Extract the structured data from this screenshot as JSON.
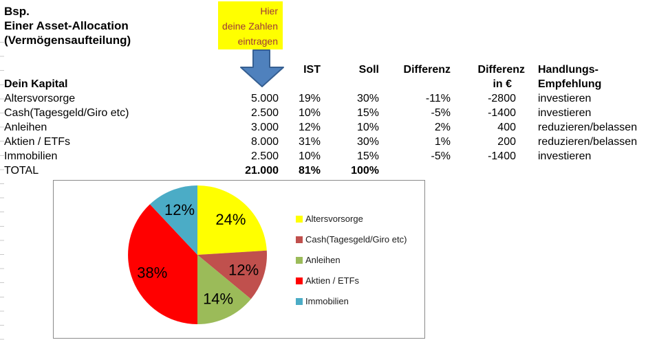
{
  "title_block": {
    "lines": [
      "Bsp.",
      "Einer Asset-Allocation",
      "(Vermögensaufteilung)"
    ]
  },
  "note": {
    "lines": [
      "Hier",
      "deine Zahlen",
      "eintragen"
    ],
    "bg_color": "#FFFF00",
    "text_color": "#9C3838"
  },
  "arrow": {
    "fill": "#4F81BD",
    "stroke": "#365F91"
  },
  "table": {
    "section_label": "Dein Kapital",
    "col_headers": {
      "ist": "IST",
      "soll": "Soll",
      "differenz": "Differenz",
      "differenz_eur_line1": "Differenz",
      "differenz_eur_line2": "in €",
      "action_line1": "Handlungs-",
      "action_line2": "Empfehlung"
    },
    "rows": [
      {
        "label": "Altersvorsorge",
        "kapital": "5.000",
        "ist": "19%",
        "soll": "30%",
        "differenz": "-11%",
        "differenz_eur": "-2800",
        "empfehlung": "investieren"
      },
      {
        "label": "Cash(Tagesgeld/Giro etc)",
        "kapital": "2.500",
        "ist": "10%",
        "soll": "15%",
        "differenz": "-5%",
        "differenz_eur": "-1400",
        "empfehlung": "investieren"
      },
      {
        "label": "Anleihen",
        "kapital": "3.000",
        "ist": "12%",
        "soll": "10%",
        "differenz": "2%",
        "differenz_eur": "400",
        "empfehlung": "reduzieren/belassen"
      },
      {
        "label": "Aktien / ETFs",
        "kapital": "8.000",
        "ist": "31%",
        "soll": "30%",
        "differenz": "1%",
        "differenz_eur": "200",
        "empfehlung": "reduzieren/belassen"
      },
      {
        "label": "Immobilien",
        "kapital": "2.500",
        "ist": "10%",
        "soll": "15%",
        "differenz": "-5%",
        "differenz_eur": "-1400",
        "empfehlung": "investieren"
      }
    ],
    "total_row": {
      "label": "TOTAL",
      "kapital": "21.000",
      "ist": "81%",
      "soll": "100%"
    }
  },
  "chart_data": {
    "type": "pie",
    "title": "",
    "labels": [
      "Altersvorsorge",
      "Cash(Tagesgeld/Giro etc)",
      "Anleihen",
      "Aktien / ETFs",
      "Immobilien"
    ],
    "values": [
      24,
      12,
      14,
      38,
      12
    ],
    "data_labels": [
      "24%",
      "12%",
      "14%",
      "38%",
      "12%"
    ],
    "colors": [
      "#FFFF00",
      "#C0504D",
      "#9BBB59",
      "#FF0000",
      "#4BACC6"
    ],
    "legend_position": "right",
    "start_angle_deg": 0,
    "direction": "clockwise"
  }
}
